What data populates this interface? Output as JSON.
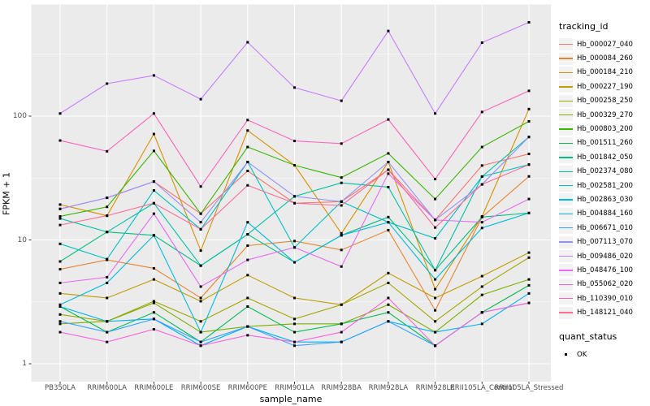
{
  "chart_data": {
    "type": "line",
    "title": "",
    "xlabel": "sample_name",
    "ylabel": "FPKM + 1",
    "y_scale": "log10",
    "y_ticks": [
      1,
      10,
      100
    ],
    "y_minor": [
      3.162,
      31.62,
      316.2
    ],
    "ylim": [
      0.72,
      790
    ],
    "grid": true,
    "legend_position": "right",
    "marker": "black-square",
    "panel_color": "#EBEBEB",
    "grid_color": "#FFFFFF",
    "categories": [
      "PB350LA",
      "RRIM600LA",
      "RRIM600LE",
      "RRIM600SE",
      "RRIM600PE",
      "RRIM901LA",
      "RRIM928BA",
      "RRIM928LA",
      "RRIM928LE",
      "RRII105LA_Control",
      "RRII105LA_Stressed"
    ],
    "legend": {
      "tracking_title": "tracking_id",
      "quant_title": "quant_status",
      "quant_label": "OK"
    },
    "series": [
      {
        "name": "Hb_000027_040",
        "color": "#F8766D",
        "values": [
          17.8,
          21.9,
          29.6,
          16.3,
          36.1,
          19.8,
          20.4,
          36.9,
          14.5,
          39.9,
          49.5
        ]
      },
      {
        "name": "Hb_000084_260",
        "color": "#EA8331",
        "values": [
          5.8,
          6.9,
          5.9,
          3.4,
          9.0,
          9.8,
          8.3,
          12.0,
          2.7,
          15.3,
          32.6
        ]
      },
      {
        "name": "Hb_000184_210",
        "color": "#D89000",
        "values": [
          19.3,
          15.7,
          71.7,
          8.2,
          76.5,
          40.1,
          11.3,
          42.6,
          4.0,
          15.5,
          114
        ]
      },
      {
        "name": "Hb_000227_190",
        "color": "#C09B00",
        "values": [
          3.7,
          3.4,
          4.8,
          3.2,
          5.2,
          3.4,
          3.0,
          5.4,
          3.4,
          5.1,
          7.9
        ]
      },
      {
        "name": "Hb_000258_250",
        "color": "#A3A500",
        "values": [
          2.5,
          2.2,
          3.2,
          2.2,
          3.4,
          2.3,
          3.0,
          4.5,
          2.2,
          4.2,
          7.2
        ]
      },
      {
        "name": "Hb_000329_270",
        "color": "#7CAE00",
        "values": [
          2.1,
          2.2,
          3.1,
          1.8,
          2.0,
          2.1,
          2.1,
          3.0,
          1.8,
          3.6,
          4.8
        ]
      },
      {
        "name": "Hb_000803_200",
        "color": "#39B600",
        "values": [
          15.5,
          18.5,
          52.4,
          16.3,
          56.3,
          40.1,
          31.9,
          50.0,
          21.4,
          56.3,
          90.7
        ]
      },
      {
        "name": "Hb_001511_260",
        "color": "#00BB4E",
        "values": [
          2.9,
          1.8,
          2.6,
          1.5,
          2.9,
          1.8,
          2.1,
          2.6,
          1.4,
          2.6,
          4.3
        ]
      },
      {
        "name": "Hb_001842_050",
        "color": "#00BF7D",
        "values": [
          6.7,
          11.6,
          10.9,
          6.2,
          11.1,
          6.6,
          10.9,
          15.3,
          5.7,
          15.3,
          16.5
        ]
      },
      {
        "name": "Hb_002374_080",
        "color": "#00C1A3",
        "values": [
          14.9,
          11.6,
          19.8,
          6.2,
          11.1,
          22.5,
          28.9,
          26.7,
          5.7,
          32.5,
          67.9
        ]
      },
      {
        "name": "Hb_002581_200",
        "color": "#00BFC4",
        "values": [
          9.3,
          7.0,
          25.1,
          12.2,
          42.6,
          8.7,
          20.4,
          13.9,
          10.3,
          32.5,
          40.6
        ]
      },
      {
        "name": "Hb_002863_030",
        "color": "#00BAE0",
        "values": [
          3.0,
          4.5,
          10.9,
          1.8,
          13.9,
          6.6,
          10.9,
          13.9,
          4.8,
          12.5,
          16.5
        ]
      },
      {
        "name": "Hb_004884_160",
        "color": "#00B0F6",
        "values": [
          2.9,
          2.2,
          2.3,
          1.4,
          2.0,
          1.5,
          1.5,
          2.2,
          1.8,
          2.1,
          3.7
        ]
      },
      {
        "name": "Hb_006671_010",
        "color": "#35A2FF",
        "values": [
          2.2,
          1.8,
          2.3,
          1.5,
          2.0,
          1.4,
          1.5,
          2.2,
          1.4,
          2.6,
          3.1
        ]
      },
      {
        "name": "Hb_007113_070",
        "color": "#9590FF",
        "values": [
          17.8,
          21.9,
          29.6,
          13.9,
          42.6,
          22.5,
          20.4,
          42.6,
          14.5,
          28.1,
          67.9
        ]
      },
      {
        "name": "Hb_009486_020",
        "color": "#C77CFF",
        "values": [
          105,
          183,
          213,
          137,
          395,
          170,
          133,
          487,
          105,
          392,
          572
        ]
      },
      {
        "name": "Hb_048476_100",
        "color": "#E76BF3",
        "values": [
          4.5,
          5.0,
          16.3,
          4.2,
          6.9,
          8.7,
          6.1,
          34.3,
          14.5,
          13.9,
          21.4
        ]
      },
      {
        "name": "Hb_055062_020",
        "color": "#FA62DB",
        "values": [
          1.8,
          1.5,
          1.9,
          1.4,
          1.7,
          1.5,
          1.8,
          3.4,
          1.4,
          2.6,
          3.1
        ]
      },
      {
        "name": "Hb_110390_010",
        "color": "#FF62BC",
        "values": [
          63.5,
          52,
          105,
          27,
          93,
          63,
          60,
          94,
          31,
          108,
          160
        ]
      },
      {
        "name": "Hb_148121_040",
        "color": "#FF6A98",
        "values": [
          13.2,
          15.7,
          19.8,
          12.2,
          27.6,
          19.8,
          19.0,
          36.9,
          12.6,
          28.1,
          40.6
        ]
      }
    ]
  }
}
